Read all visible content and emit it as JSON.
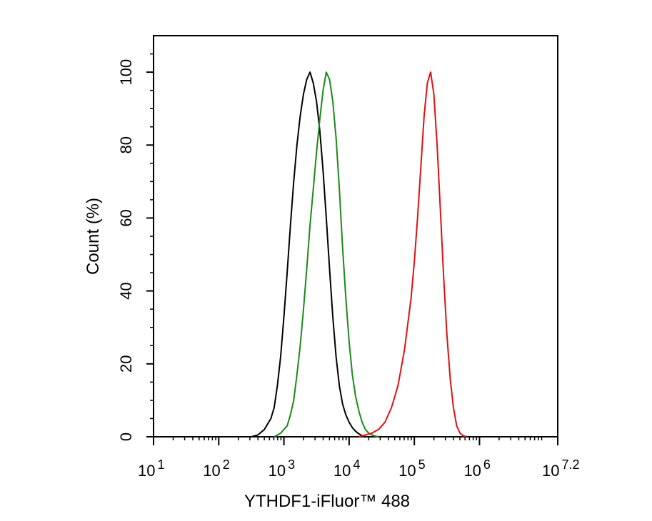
{
  "chart_data": {
    "type": "line",
    "title": "",
    "xlabel": "YTHDF1-iFluor™ 488",
    "ylabel": "Count  (%)",
    "x_scale": "log10",
    "xlim": [
      10,
      15848931.92
    ],
    "ylim": [
      0,
      110
    ],
    "grid": false,
    "legend": "none",
    "x_ticks": [
      {
        "base": "10",
        "exp": "1"
      },
      {
        "base": "10",
        "exp": "2"
      },
      {
        "base": "10",
        "exp": "3"
      },
      {
        "base": "10",
        "exp": "4"
      },
      {
        "base": "10",
        "exp": "5"
      },
      {
        "base": "10",
        "exp": "6"
      },
      {
        "base": "10",
        "exp": "7.2"
      }
    ],
    "x_tick_values": [
      10,
      100,
      1000,
      10000,
      100000,
      1000000,
      15848931.92
    ],
    "y_ticks": [
      "0",
      "20",
      "40",
      "60",
      "80",
      "100"
    ],
    "y_tick_values": [
      0,
      20,
      40,
      60,
      80,
      100
    ],
    "series": [
      {
        "color": "#000000",
        "x": [
          316,
          398,
          501,
          631,
          708,
          794,
          891,
          1000,
          1122,
          1259,
          1413,
          1585,
          1778,
          1995,
          2239,
          2512,
          2818,
          3162,
          3548,
          3981,
          4467,
          5012,
          5623,
          6310,
          7079,
          7943,
          8913,
          10000,
          11220,
          12589,
          14125,
          15849,
          17783
        ],
        "y": [
          0,
          0.5,
          2,
          5,
          8,
          14,
          22,
          33,
          45,
          58,
          70,
          80,
          88,
          94,
          98,
          100,
          97,
          92,
          84,
          73,
          60,
          46,
          33,
          22,
          14,
          9,
          6,
          4,
          2.5,
          1.5,
          0.8,
          0.3,
          0
        ]
      },
      {
        "color": "#1a8a1a",
        "x": [
          708,
          891,
          1122,
          1259,
          1413,
          1585,
          1778,
          1995,
          2239,
          2512,
          2818,
          3162,
          3548,
          3981,
          4467,
          5012,
          5623,
          6310,
          7079,
          7943,
          8913,
          10000,
          11220,
          12589,
          14125,
          15849,
          17783,
          19953,
          22387,
          25119,
          28184
        ],
        "y": [
          0,
          1,
          3,
          6,
          10,
          17,
          25,
          35,
          46,
          58,
          68,
          78,
          87,
          95,
          100,
          98,
          92,
          82,
          68,
          52,
          38,
          26,
          17,
          11,
          7,
          4,
          2,
          1,
          0.5,
          0.2,
          0
        ]
      },
      {
        "color": "#e01010",
        "x": [
          14125,
          17783,
          22387,
          28184,
          35481,
          44668,
          56234,
          70795,
          89125,
          100000,
          112202,
          125893,
          141254,
          158489,
          177828,
          199526,
          223872,
          251189,
          281838,
          316228,
          354813,
          398107,
          446684,
          501187,
          562341,
          630957
        ],
        "y": [
          0,
          0.5,
          1,
          2,
          4,
          8,
          14,
          24,
          38,
          48,
          60,
          74,
          88,
          97,
          100,
          94,
          80,
          62,
          44,
          28,
          16,
          8,
          3,
          1,
          0.3,
          0
        ]
      }
    ]
  }
}
